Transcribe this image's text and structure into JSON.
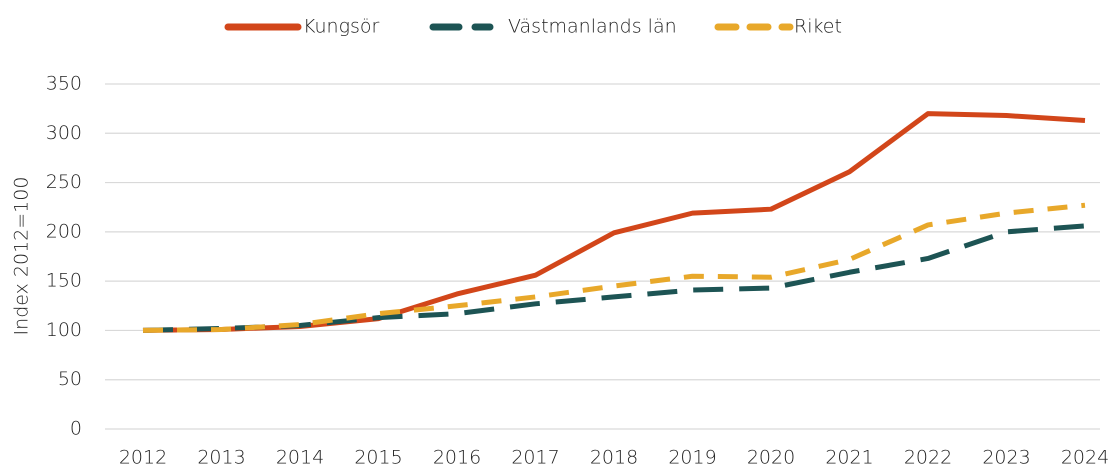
{
  "chart_data": {
    "type": "line",
    "y_label": "Index 2012=100",
    "x": [
      2012,
      2013,
      2014,
      2015,
      2016,
      2017,
      2018,
      2019,
      2020,
      2021,
      2022,
      2023,
      2024
    ],
    "series": [
      {
        "name": "Kungsör",
        "color": "#d2461a",
        "line_style": "solid",
        "values": [
          100,
          101,
          104,
          112,
          137,
          156,
          199,
          219,
          223,
          261,
          320,
          318,
          313
        ]
      },
      {
        "name": "Västmanlands län",
        "color": "#1d5454",
        "line_style": "long-dash",
        "values": [
          100,
          102,
          105,
          113,
          117,
          127,
          134,
          141,
          143,
          159,
          173,
          200,
          206
        ]
      },
      {
        "name": "Riket",
        "color": "#e8a82a",
        "line_style": "dash",
        "values": [
          100,
          101,
          106,
          117,
          125,
          134,
          145,
          155,
          154,
          172,
          207,
          219,
          227
        ]
      }
    ],
    "ylim": [
      0,
      350
    ],
    "yticks": [
      0,
      50,
      100,
      150,
      200,
      250,
      300,
      350
    ],
    "xlim": [
      2012,
      2024
    ],
    "grid": true,
    "legend": "top"
  }
}
